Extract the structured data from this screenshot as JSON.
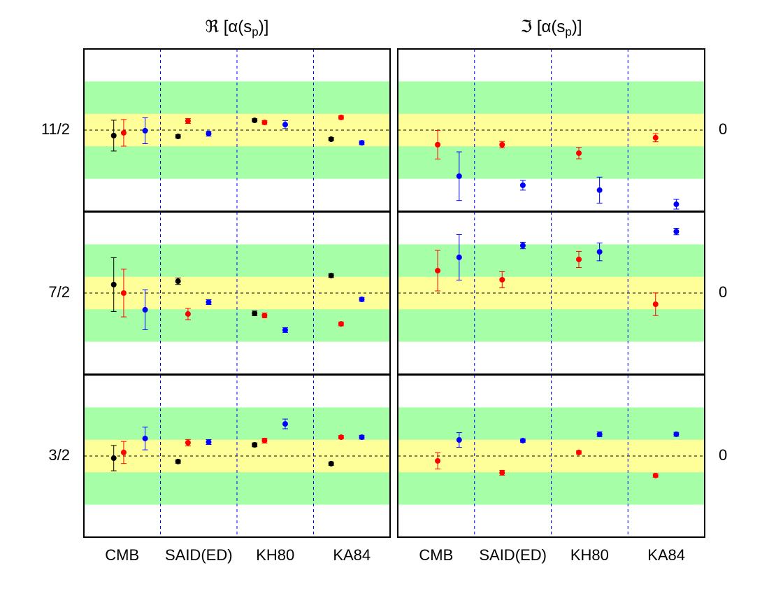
{
  "chart_data": {
    "type": "errorbar",
    "column_titles": [
      {
        "main": "ℜ [α(s",
        "sub": "p",
        "end": ")]"
      },
      {
        "main": "ℑ [α(s",
        "sub": "p",
        "end": ")]"
      }
    ],
    "categories": [
      "CMB",
      "SAID(ED)",
      "KH80",
      "KA84"
    ],
    "ylim": [
      -5,
      5
    ],
    "bands": [
      {
        "range": [
          -3,
          3
        ],
        "color": "#a6ffa6"
      },
      {
        "range": [
          -1,
          1
        ],
        "color": "#ffff99"
      }
    ],
    "rows": [
      {
        "label": "11/2",
        "right_label": "0",
        "panels": [
          {
            "series": [
              {
                "color": "#000000",
                "values": [
                  -0.34,
                  -0.39,
                  0.6,
                  -0.56
                ],
                "errors": [
                  0.95,
                  0.1,
                  0.1,
                  0.1
                ]
              },
              {
                "color": "#ff0000",
                "values": [
                  -0.17,
                  0.56,
                  0.47,
                  0.78
                ],
                "errors": [
                  0.82,
                  0.15,
                  0.12,
                  0.1
                ]
              },
              {
                "color": "#0000ff",
                "values": [
                  -0.04,
                  -0.22,
                  0.34,
                  -0.78
                ],
                "errors": [
                  0.8,
                  0.15,
                  0.25,
                  0.12
                ]
              }
            ]
          },
          {
            "series": [
              {
                "color": "#ff0000",
                "values": [
                  -0.9,
                  -0.9,
                  -1.42,
                  -0.47
                ],
                "errors": [
                  0.88,
                  0.2,
                  0.35,
                  0.25
                ]
              },
              {
                "color": "#0000ff",
                "values": [
                  -2.84,
                  -3.4,
                  -3.7,
                  -4.57
                ],
                "errors": [
                  1.5,
                  0.3,
                  0.8,
                  0.3
                ]
              }
            ]
          }
        ]
      },
      {
        "label": "7/2",
        "right_label": "0",
        "panels": [
          {
            "series": [
              {
                "color": "#000000",
                "values": [
                  0.52,
                  0.73,
                  -1.25,
                  1.08
                ],
                "errors": [
                  1.66,
                  0.2,
                  0.15,
                  0.12
                ]
              },
              {
                "color": "#ff0000",
                "values": [
                  0,
                  -1.29,
                  -1.38,
                  -1.9
                ],
                "errors": [
                  1.47,
                  0.35,
                  0.15,
                  0.12
                ]
              },
              {
                "color": "#0000ff",
                "values": [
                  -1.03,
                  -0.56,
                  -2.28,
                  -0.39
                ],
                "errors": [
                  1.23,
                  0.15,
                  0.15,
                  0.12
                ]
              }
            ]
          },
          {
            "series": [
              {
                "color": "#ff0000",
                "values": [
                  1.38,
                  0.82,
                  2.07,
                  -0.69
                ],
                "errors": [
                  1.25,
                  0.5,
                  0.5,
                  0.7
                ]
              },
              {
                "color": "#0000ff",
                "values": [
                  2.2,
                  2.93,
                  2.54,
                  3.79
                ],
                "errors": [
                  1.4,
                  0.2,
                  0.55,
                  0.2
                ]
              }
            ]
          }
        ]
      },
      {
        "label": "3/2",
        "right_label": "0",
        "panels": [
          {
            "series": [
              {
                "color": "#000000",
                "values": [
                  -0.13,
                  -0.34,
                  0.69,
                  -0.47
                ],
                "errors": [
                  0.78,
                  0.1,
                  0.12,
                  0.1
                ]
              },
              {
                "color": "#ff0000",
                "values": [
                  0.22,
                  0.82,
                  0.95,
                  1.16
                ],
                "errors": [
                  0.68,
                  0.2,
                  0.15,
                  0.1
                ]
              },
              {
                "color": "#0000ff",
                "values": [
                  1.08,
                  0.86,
                  1.98,
                  1.16
                ],
                "errors": [
                  0.7,
                  0.15,
                  0.3,
                  0.12
                ]
              }
            ]
          },
          {
            "series": [
              {
                "color": "#ff0000",
                "values": [
                  -0.3,
                  -1.03,
                  0.22,
                  -1.2
                ],
                "errors": [
                  0.5,
                  0.15,
                  0.1,
                  0.1
                ]
              },
              {
                "color": "#0000ff",
                "values": [
                  0.99,
                  0.95,
                  1.34,
                  1.34
                ],
                "errors": [
                  0.45,
                  0.1,
                  0.15,
                  0.12
                ]
              }
            ]
          }
        ]
      }
    ]
  }
}
